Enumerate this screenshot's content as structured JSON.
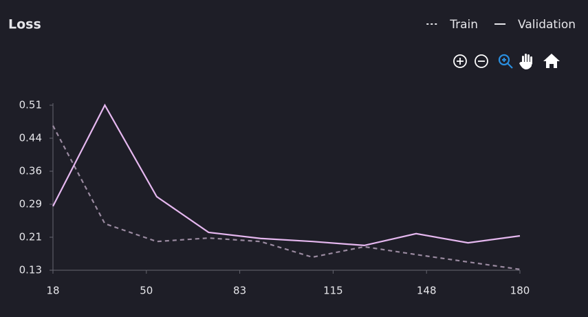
{
  "chart_data": {
    "type": "line",
    "title": "Loss",
    "x": [
      18,
      36,
      54,
      72,
      90,
      108,
      126,
      144,
      162,
      180
    ],
    "series": [
      {
        "name": "Train",
        "color": "#9a8aa0",
        "dash": true,
        "values": [
          0.466,
          0.241,
          0.2,
          0.208,
          0.2,
          0.164,
          0.188,
          0.17,
          0.153,
          0.136
        ]
      },
      {
        "name": "Validation",
        "color": "#e6b8f0",
        "dash": false,
        "values": [
          0.281,
          0.513,
          0.303,
          0.221,
          0.207,
          0.2,
          0.191,
          0.218,
          0.197,
          0.213
        ]
      }
    ],
    "xlim": [
      18,
      180
    ],
    "xticks": [
      18,
      {
        "value": 50.4,
        "label": "50"
      },
      {
        "value": 82.8,
        "label": "83"
      },
      {
        "value": 115.2,
        "label": "115"
      },
      {
        "value": 147.6,
        "label": "148"
      },
      180
    ],
    "ylim": [
      0.134,
      0.513
    ],
    "yticks": [
      {
        "value": 0.134,
        "label": "0.13"
      },
      {
        "value": 0.2098,
        "label": "0.21"
      },
      {
        "value": 0.2856,
        "label": "0.29"
      },
      {
        "value": 0.3614,
        "label": "0.36"
      },
      {
        "value": 0.4372,
        "label": "0.44"
      },
      {
        "value": 0.513,
        "label": "0.51"
      }
    ],
    "grid": false
  }
}
